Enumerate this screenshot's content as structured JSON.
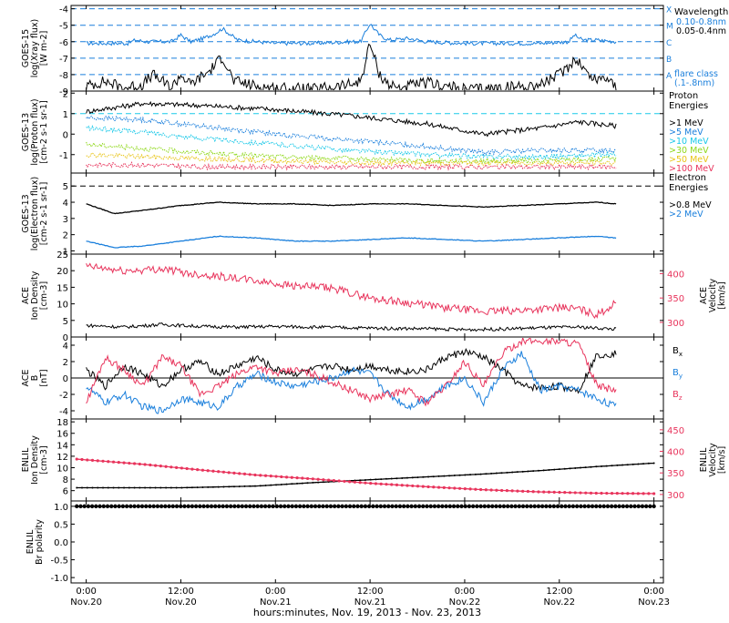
{
  "colors": {
    "black": "#000000",
    "blue": "#1a7fdc",
    "cyan": "#19c8e8",
    "green": "#8fd81a",
    "yellow": "#e8c416",
    "orange": "#ef7c1a",
    "red": "#e8345c",
    "dash_blue": "#1a7fdc",
    "dash_cyan": "#19c8e8"
  },
  "time_axis": {
    "ticks": [
      {
        "t": 0.0,
        "time": "0:00",
        "date": "Nov.20"
      },
      {
        "t": 0.5,
        "time": "12:00",
        "date": "Nov.20"
      },
      {
        "t": 1.0,
        "time": "0:00",
        "date": "Nov.21"
      },
      {
        "t": 1.5,
        "time": "12:00",
        "date": "Nov.21"
      },
      {
        "t": 2.0,
        "time": "0:00",
        "date": "Nov.22"
      },
      {
        "t": 2.5,
        "time": "12:00",
        "date": "Nov.22"
      },
      {
        "t": 3.0,
        "time": "0:00",
        "date": "Nov.23"
      }
    ],
    "range": [
      -0.08,
      3.05
    ],
    "data_end": 2.8,
    "caption": "hours:minutes, Nov. 19, 2013 - Nov. 23, 2013"
  },
  "chart_data": [
    {
      "id": "xray",
      "type": "line",
      "ylabel": [
        "GOES-15",
        "log(Xray flux)",
        "[W m-2]"
      ],
      "ylim": [
        -9,
        -3.8
      ],
      "yticks": [
        -9,
        -8,
        -7,
        -6,
        -5,
        -4
      ],
      "flare_levels": [
        {
          "y": -8,
          "label": "A"
        },
        {
          "y": -7,
          "label": "B"
        },
        {
          "y": -6,
          "label": "C"
        },
        {
          "y": -5,
          "label": "M"
        },
        {
          "y": -4,
          "label": "X"
        }
      ],
      "legend": {
        "title": "Wavelength",
        "entries": [
          {
            "label": "0.10-0.8nm",
            "color": "blue"
          },
          {
            "label": "0.05-0.4nm",
            "color": "black"
          }
        ],
        "note": [
          "flare class",
          "(.1-.8nm)"
        ]
      },
      "series": [
        {
          "name": "0.10-0.8nm",
          "color": "blue",
          "x": [
            0,
            0.22,
            0.26,
            0.32,
            0.45,
            0.5,
            0.55,
            0.62,
            0.68,
            0.72,
            0.8,
            1.0,
            1.2,
            1.4,
            1.45,
            1.5,
            1.52,
            1.55,
            1.6,
            1.7,
            1.8,
            2.0,
            2.2,
            2.4,
            2.55,
            2.58,
            2.62,
            2.7,
            2.8
          ],
          "y": [
            -6.1,
            -6.1,
            -5.9,
            -6.0,
            -6.0,
            -5.6,
            -6.0,
            -5.8,
            -5.5,
            -5.2,
            -5.9,
            -6.1,
            -6.1,
            -6.0,
            -6.0,
            -4.9,
            -5.2,
            -5.6,
            -5.9,
            -5.8,
            -6.0,
            -6.1,
            -6.1,
            -6.1,
            -6.0,
            -5.6,
            -5.9,
            -5.9,
            -6.0
          ]
        },
        {
          "name": "0.05-0.4nm",
          "color": "black",
          "x": [
            0,
            0.1,
            0.2,
            0.3,
            0.35,
            0.45,
            0.5,
            0.55,
            0.6,
            0.65,
            0.68,
            0.72,
            0.78,
            0.9,
            1.0,
            1.2,
            1.4,
            1.45,
            1.5,
            1.52,
            1.55,
            1.6,
            1.65,
            1.8,
            2.0,
            2.2,
            2.4,
            2.5,
            2.55,
            2.58,
            2.62,
            2.65,
            2.7,
            2.75,
            2.8
          ],
          "y": [
            -8.7,
            -8.4,
            -8.8,
            -8.6,
            -8.0,
            -8.8,
            -8.0,
            -8.6,
            -8.2,
            -7.8,
            -7.4,
            -6.9,
            -8.4,
            -8.7,
            -8.8,
            -8.9,
            -8.6,
            -8.4,
            -6.1,
            -6.9,
            -8.0,
            -8.6,
            -8.8,
            -8.5,
            -8.9,
            -8.8,
            -8.6,
            -8.0,
            -7.5,
            -7.0,
            -7.4,
            -8.0,
            -8.3,
            -8.1,
            -8.7
          ]
        }
      ]
    },
    {
      "id": "proton",
      "type": "line",
      "ylabel": [
        "GOES-13",
        "log(Proton flux)",
        "[cm-2 s-1 sr-1]"
      ],
      "ylim": [
        -1.9,
        2.1
      ],
      "yticks": [
        -1,
        0,
        1,
        2
      ],
      "reference_line": 1.0,
      "legend": {
        "title": [
          "Proton",
          "Energies"
        ],
        "entries": [
          {
            "label": ">1 MeV",
            "color": "black"
          },
          {
            "label": ">5 MeV",
            "color": "blue"
          },
          {
            "label": ">10 MeV",
            "color": "cyan"
          },
          {
            "label": ">30 MeV",
            "color": "green"
          },
          {
            "label": ">50 MeV",
            "color": "yellow"
          },
          {
            "label": ">100 MeV",
            "color": "red"
          }
        ]
      },
      "series": [
        {
          "name": ">1 MeV",
          "color": "black",
          "x": [
            0,
            0.3,
            0.6,
            1.0,
            1.4,
            1.8,
            2.1,
            2.4,
            2.6,
            2.8
          ],
          "y": [
            1.1,
            1.5,
            1.4,
            1.2,
            0.9,
            0.5,
            0.0,
            0.3,
            0.6,
            0.4
          ]
        },
        {
          "name": ">5 MeV",
          "color": "blue",
          "x": [
            0,
            0.3,
            0.6,
            1.0,
            1.4,
            1.8,
            2.1,
            2.4,
            2.8
          ],
          "y": [
            0.8,
            0.7,
            0.4,
            0.0,
            -0.3,
            -0.6,
            -0.9,
            -0.8,
            -0.8
          ]
        },
        {
          "name": ">10 MeV",
          "color": "cyan",
          "x": [
            0,
            0.3,
            0.6,
            1.0,
            1.4,
            1.8,
            2.1,
            2.4,
            2.8
          ],
          "y": [
            0.3,
            0.1,
            -0.2,
            -0.5,
            -0.8,
            -1.0,
            -1.1,
            -1.1,
            -1.0
          ]
        },
        {
          "name": ">30 MeV",
          "color": "green",
          "x": [
            0,
            0.3,
            0.6,
            1.0,
            1.4,
            1.8,
            2.1,
            2.4,
            2.8
          ],
          "y": [
            -0.5,
            -0.7,
            -0.9,
            -1.1,
            -1.2,
            -1.3,
            -1.3,
            -1.3,
            -1.2
          ]
        },
        {
          "name": ">50 MeV",
          "color": "yellow",
          "x": [
            0,
            0.3,
            0.6,
            1.0,
            1.4,
            1.8,
            2.1,
            2.4,
            2.8
          ],
          "y": [
            -1.0,
            -1.1,
            -1.2,
            -1.3,
            -1.4,
            -1.4,
            -1.4,
            -1.4,
            -1.4
          ]
        },
        {
          "name": ">100 MeV",
          "color": "red",
          "x": [
            0,
            0.3,
            0.6,
            1.0,
            1.4,
            1.8,
            2.1,
            2.4,
            2.8
          ],
          "y": [
            -1.5,
            -1.5,
            -1.6,
            -1.6,
            -1.6,
            -1.6,
            -1.6,
            -1.6,
            -1.6
          ]
        }
      ]
    },
    {
      "id": "electron",
      "type": "line",
      "ylabel": [
        "GOES-13",
        "log(Electron flux)",
        "[cm-2 s-1 sr-1]"
      ],
      "ylim": [
        0.8,
        5.8
      ],
      "yticks": [
        1,
        2,
        3,
        4,
        5
      ],
      "reference_line": 5.0,
      "legend": {
        "title": [
          "Electron",
          "Energies"
        ],
        "entries": [
          {
            "label": ">0.8 MeV",
            "color": "black"
          },
          {
            "label": ">2 MeV",
            "color": "blue"
          }
        ]
      },
      "series": [
        {
          "name": ">0.8 MeV",
          "color": "black",
          "x": [
            0,
            0.15,
            0.3,
            0.5,
            0.7,
            0.9,
            1.1,
            1.3,
            1.5,
            1.7,
            1.9,
            2.1,
            2.3,
            2.5,
            2.7,
            2.8
          ],
          "y": [
            3.9,
            3.3,
            3.5,
            3.8,
            4.0,
            3.9,
            3.9,
            3.8,
            3.9,
            3.9,
            3.8,
            3.7,
            3.8,
            3.9,
            4.0,
            3.9
          ]
        },
        {
          "name": ">2 MeV",
          "color": "blue",
          "x": [
            0,
            0.15,
            0.3,
            0.5,
            0.7,
            0.9,
            1.1,
            1.3,
            1.5,
            1.7,
            1.9,
            2.1,
            2.3,
            2.5,
            2.7,
            2.8
          ],
          "y": [
            1.6,
            1.2,
            1.3,
            1.6,
            1.9,
            1.8,
            1.6,
            1.6,
            1.7,
            1.8,
            1.7,
            1.6,
            1.7,
            1.8,
            1.9,
            1.8
          ]
        }
      ]
    },
    {
      "id": "ace_density",
      "type": "line",
      "ylabel": [
        "ACE",
        "Ion Density",
        "[cm-3]"
      ],
      "ylabel_right": [
        "ACE",
        "Velocity",
        "[km/s]"
      ],
      "ylim": [
        0,
        25
      ],
      "yticks": [
        0,
        5,
        10,
        15,
        20,
        25
      ],
      "y2lim": [
        270,
        440
      ],
      "y2ticks": [
        300,
        350,
        400
      ],
      "series": [
        {
          "name": "Ion Density",
          "color": "black",
          "axis": "left",
          "x": [
            0,
            0.2,
            0.4,
            0.6,
            0.8,
            1.0,
            1.2,
            1.4,
            1.6,
            1.8,
            2.0,
            2.2,
            2.4,
            2.6,
            2.8
          ],
          "y": [
            3.5,
            3.0,
            3.8,
            3.2,
            3.0,
            3.2,
            3.0,
            2.8,
            2.6,
            2.5,
            2.2,
            2.4,
            2.8,
            3.0,
            2.4
          ]
        },
        {
          "name": "Velocity",
          "color": "red",
          "axis": "right",
          "x": [
            0,
            0.2,
            0.4,
            0.55,
            0.7,
            0.9,
            1.1,
            1.3,
            1.5,
            1.7,
            1.9,
            2.1,
            2.3,
            2.5,
            2.6,
            2.7,
            2.8
          ],
          "y": [
            415,
            405,
            410,
            400,
            395,
            385,
            375,
            370,
            350,
            340,
            330,
            322,
            325,
            330,
            328,
            315,
            340
          ]
        }
      ]
    },
    {
      "id": "ace_b",
      "type": "line",
      "ylabel": [
        "ACE",
        "B",
        "[nT]"
      ],
      "ylim": [
        -5,
        5
      ],
      "yticks": [
        -4,
        -2,
        0,
        2,
        4
      ],
      "series": [
        {
          "name": "Bx",
          "label": "B",
          "sub": "x",
          "color": "black",
          "x": [
            0,
            0.1,
            0.2,
            0.3,
            0.4,
            0.5,
            0.6,
            0.7,
            0.8,
            0.9,
            1.0,
            1.1,
            1.2,
            1.3,
            1.4,
            1.5,
            1.6,
            1.7,
            1.8,
            1.9,
            2.0,
            2.1,
            2.2,
            2.3,
            2.4,
            2.5,
            2.6,
            2.7,
            2.8
          ],
          "y": [
            1.0,
            -1.0,
            1.5,
            0.5,
            -1.0,
            1.0,
            2.0,
            0.5,
            1.5,
            2.5,
            1.0,
            0.5,
            1.0,
            1.5,
            1.0,
            1.5,
            1.0,
            0.8,
            1.0,
            2.5,
            3.2,
            2.5,
            1.0,
            -1.0,
            -1.2,
            -1.0,
            -1.5,
            2.8,
            3.0
          ]
        },
        {
          "name": "By",
          "label": "B",
          "sub": "y",
          "color": "blue",
          "x": [
            0,
            0.1,
            0.2,
            0.3,
            0.4,
            0.5,
            0.6,
            0.7,
            0.8,
            0.9,
            1.0,
            1.1,
            1.2,
            1.3,
            1.4,
            1.5,
            1.6,
            1.7,
            1.8,
            1.9,
            2.0,
            2.1,
            2.2,
            2.3,
            2.4,
            2.5,
            2.6,
            2.7,
            2.8
          ],
          "y": [
            -1.0,
            -3.0,
            -2.0,
            -3.5,
            -4.0,
            -2.5,
            -3.0,
            -3.5,
            -1.0,
            0.5,
            -0.5,
            -1.0,
            -0.5,
            0.0,
            1.0,
            0.5,
            -2.0,
            -3.5,
            -2.5,
            -1.0,
            0.0,
            -3.0,
            1.0,
            3.0,
            -1.5,
            -1.0,
            -1.5,
            -2.5,
            -3.5
          ]
        },
        {
          "name": "Bz",
          "label": "B",
          "sub": "z",
          "color": "red",
          "x": [
            0,
            0.1,
            0.2,
            0.3,
            0.4,
            0.5,
            0.6,
            0.7,
            0.8,
            0.9,
            1.0,
            1.1,
            1.2,
            1.3,
            1.4,
            1.5,
            1.6,
            1.7,
            1.8,
            1.9,
            2.0,
            2.1,
            2.2,
            2.3,
            2.4,
            2.5,
            2.6,
            2.7,
            2.8
          ],
          "y": [
            -3.0,
            2.5,
            1.0,
            -1.0,
            2.5,
            1.5,
            -2.0,
            -1.0,
            0.5,
            1.5,
            0.5,
            1.0,
            0.5,
            -0.5,
            -1.5,
            -2.5,
            -2.0,
            -1.5,
            -3.0,
            -1.0,
            2.0,
            -1.0,
            3.0,
            4.5,
            4.5,
            4.5,
            4.2,
            -1.0,
            -1.5
          ]
        }
      ],
      "reference_line": 0
    },
    {
      "id": "enlil_density",
      "type": "line",
      "ylabel": [
        "ENLIL",
        "Ion Density",
        "[cm-3]"
      ],
      "ylabel_right": [
        "ENLIL",
        "Velocity",
        "[km/s]"
      ],
      "ylim": [
        4.2,
        18.5
      ],
      "yticks": [
        6,
        8,
        10,
        12,
        14,
        16,
        18
      ],
      "y2lim": [
        285,
        475
      ],
      "y2ticks": [
        300,
        350,
        400,
        450
      ],
      "series": [
        {
          "name": "Ion Density",
          "color": "black",
          "axis": "left",
          "x": [
            -0.05,
            0.5,
            0.9,
            1.2,
            1.5,
            1.8,
            2.1,
            2.4,
            2.7,
            3.0
          ],
          "y": [
            6.5,
            6.5,
            6.8,
            7.4,
            7.9,
            8.4,
            8.9,
            9.5,
            10.2,
            10.8
          ]
        },
        {
          "name": "Velocity",
          "color": "red",
          "axis": "right",
          "x": [
            -0.05,
            0.3,
            0.6,
            0.9,
            1.2,
            1.5,
            1.8,
            2.1,
            2.4,
            2.7,
            3.0
          ],
          "y": [
            382,
            370,
            357,
            345,
            336,
            326,
            318,
            311,
            306,
            303,
            302
          ]
        }
      ]
    },
    {
      "id": "enlil_polarity",
      "type": "line",
      "ylabel": [
        "ENLIL",
        "Br polarity"
      ],
      "ylim": [
        -1.15,
        1.15
      ],
      "yticks": [
        -1.0,
        -0.5,
        0.0,
        0.5,
        1.0
      ],
      "ytick_labels": [
        "-1.0",
        "-0.5",
        "0.0",
        "0.5",
        "1.0"
      ],
      "series": [
        {
          "name": "Br polarity",
          "color": "black",
          "x": [
            -0.05,
            3.0
          ],
          "y": [
            1.0,
            1.0
          ]
        }
      ]
    }
  ]
}
